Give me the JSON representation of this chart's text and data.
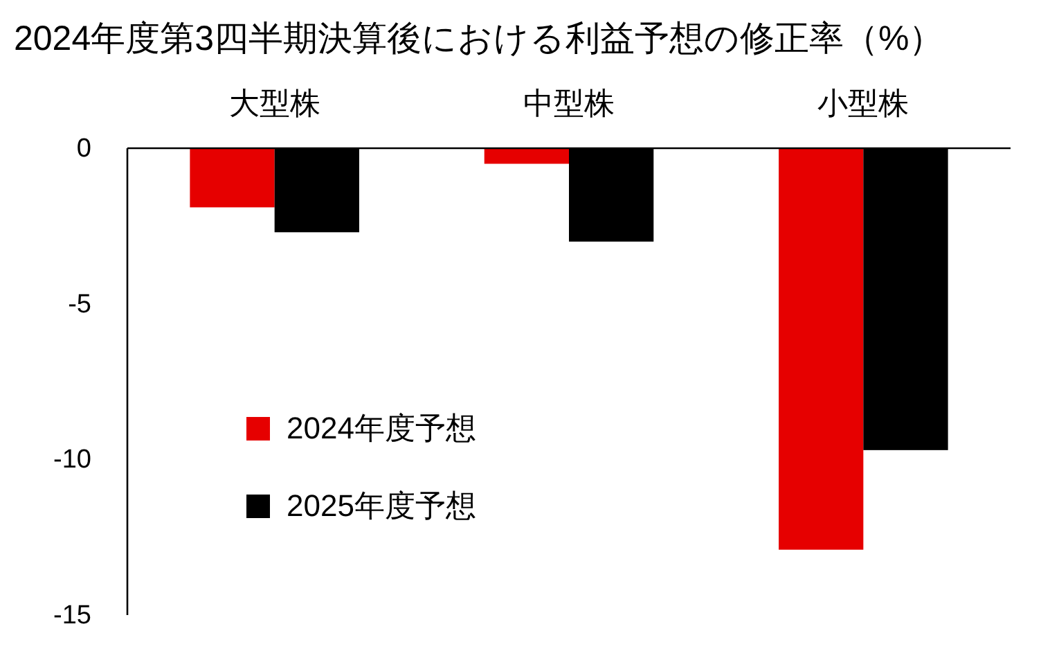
{
  "chart_data": {
    "type": "bar",
    "title": "2024年度第3四半期決算後における利益予想の修正率（%）",
    "categories": [
      "大型株",
      "中型株",
      "小型株"
    ],
    "series": [
      {
        "name": "2024年度予想",
        "color": "#e60000",
        "values": [
          -1.9,
          -0.5,
          -12.9
        ]
      },
      {
        "name": "2025年度予想",
        "color": "#000000",
        "values": [
          -2.7,
          -3.0,
          -9.7
        ]
      }
    ],
    "ylim": [
      -15,
      0
    ],
    "yticks": [
      0,
      -5,
      -10,
      -15
    ],
    "legend": "bottom left"
  }
}
